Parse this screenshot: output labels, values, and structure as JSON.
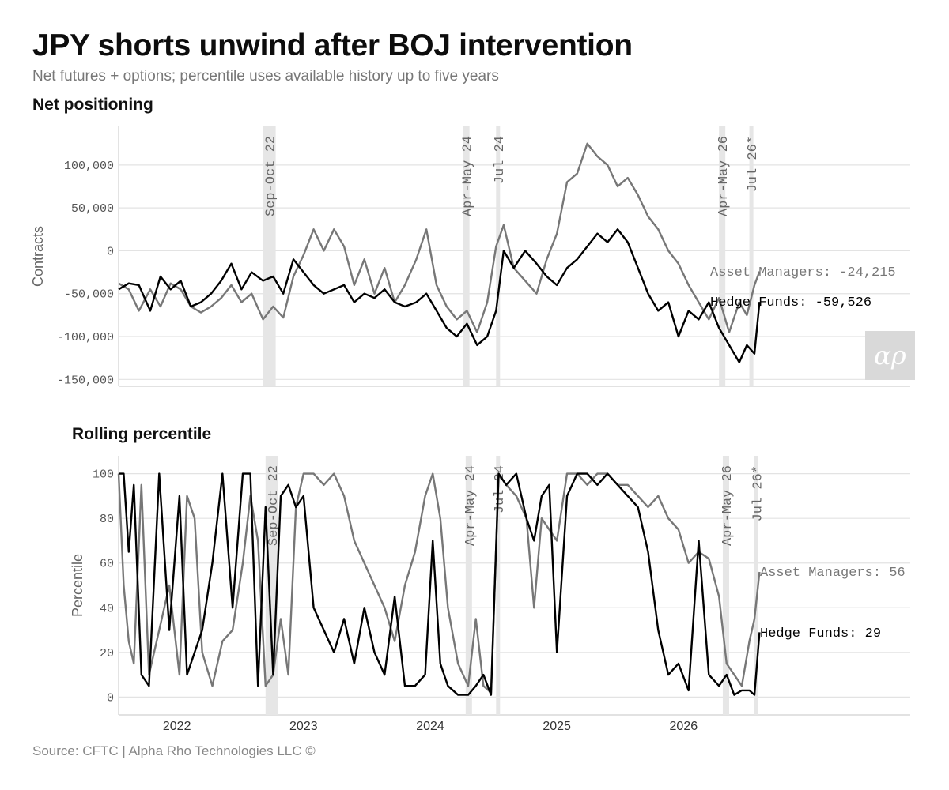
{
  "header": {
    "title": "JPY shorts unwind after BOJ intervention",
    "subtitle": "Net futures + options; percentile uses available history up to five years"
  },
  "footer": {
    "source": "Source: CFTC | Alpha Rho Technologies LLC ©"
  },
  "logo": {
    "icon": "alpha-rho-logo"
  },
  "colors": {
    "asset_managers": "#777777",
    "hedge_funds": "#000000",
    "shading": "#e6e6e6",
    "grid": "#e3e3e3"
  },
  "chart_data": [
    {
      "type": "line",
      "title": "Net positioning",
      "ylabel": "Contracts",
      "ylim": [
        -158000,
        145000
      ],
      "yticks": [
        100000,
        50000,
        0,
        -50000,
        -100000,
        -150000
      ],
      "ytick_labels": [
        "100,000",
        "50,000",
        "0",
        "-50,000",
        "-100,000",
        "-150,000"
      ],
      "xlim": [
        2021.54,
        2027.79
      ],
      "grid": true,
      "shaded_periods": [
        {
          "label": "Sep-Oct 22",
          "start": 2022.68,
          "end": 2022.78
        },
        {
          "label": "Apr-May 24",
          "start": 2024.26,
          "end": 2024.31
        },
        {
          "label": "Jul 24",
          "start": 2024.52,
          "end": 2024.55
        },
        {
          "label": "Apr-May 26",
          "start": 2026.28,
          "end": 2026.33
        },
        {
          "label": "Jul 26*",
          "start": 2026.52,
          "end": 2026.55
        }
      ],
      "series": [
        {
          "name": "Asset Managers",
          "end_label": "Asset Managers: -24,215",
          "x": [
            2021.54,
            2021.62,
            2021.7,
            2021.79,
            2021.87,
            2021.95,
            2022.03,
            2022.11,
            2022.19,
            2022.27,
            2022.35,
            2022.43,
            2022.51,
            2022.59,
            2022.68,
            2022.76,
            2022.84,
            2022.92,
            2023.0,
            2023.08,
            2023.16,
            2023.24,
            2023.32,
            2023.4,
            2023.48,
            2023.56,
            2023.64,
            2023.72,
            2023.8,
            2023.89,
            2023.97,
            2024.05,
            2024.13,
            2024.21,
            2024.29,
            2024.37,
            2024.45,
            2024.52,
            2024.58,
            2024.66,
            2024.75,
            2024.84,
            2024.92,
            2025.0,
            2025.08,
            2025.16,
            2025.24,
            2025.32,
            2025.4,
            2025.48,
            2025.56,
            2025.64,
            2025.72,
            2025.8,
            2025.88,
            2025.96,
            2026.04,
            2026.12,
            2026.2,
            2026.28,
            2026.36,
            2026.44,
            2026.5,
            2026.56,
            2026.6
          ],
          "y": [
            -38000,
            -45000,
            -70000,
            -45000,
            -65000,
            -38000,
            -45000,
            -65000,
            -72000,
            -65000,
            -55000,
            -40000,
            -60000,
            -50000,
            -80000,
            -65000,
            -78000,
            -30000,
            -5000,
            25000,
            0,
            25000,
            5000,
            -40000,
            -10000,
            -50000,
            -20000,
            -60000,
            -40000,
            -10000,
            25000,
            -40000,
            -65000,
            -80000,
            -70000,
            -95000,
            -60000,
            5000,
            30000,
            -20000,
            -35000,
            -50000,
            -10000,
            20000,
            80000,
            90000,
            125000,
            110000,
            100000,
            75000,
            85000,
            65000,
            40000,
            25000,
            0,
            -15000,
            -40000,
            -60000,
            -80000,
            -55000,
            -95000,
            -60000,
            -75000,
            -40000,
            -24215
          ]
        },
        {
          "name": "Hedge Funds",
          "end_label": "Hedge Funds: -59,526",
          "x": [
            2021.54,
            2021.62,
            2021.7,
            2021.79,
            2021.87,
            2021.95,
            2022.03,
            2022.11,
            2022.19,
            2022.27,
            2022.35,
            2022.43,
            2022.51,
            2022.59,
            2022.68,
            2022.76,
            2022.84,
            2022.92,
            2023.0,
            2023.08,
            2023.16,
            2023.24,
            2023.32,
            2023.4,
            2023.48,
            2023.56,
            2023.64,
            2023.72,
            2023.8,
            2023.89,
            2023.97,
            2024.05,
            2024.13,
            2024.21,
            2024.29,
            2024.37,
            2024.45,
            2024.52,
            2024.58,
            2024.66,
            2024.75,
            2024.84,
            2024.92,
            2025.0,
            2025.08,
            2025.16,
            2025.24,
            2025.32,
            2025.4,
            2025.48,
            2025.56,
            2025.64,
            2025.72,
            2025.8,
            2025.88,
            2025.96,
            2026.04,
            2026.12,
            2026.2,
            2026.28,
            2026.36,
            2026.44,
            2026.5,
            2026.56,
            2026.6
          ],
          "y": [
            -45000,
            -38000,
            -40000,
            -70000,
            -30000,
            -45000,
            -35000,
            -65000,
            -60000,
            -50000,
            -35000,
            -15000,
            -45000,
            -25000,
            -35000,
            -30000,
            -50000,
            -10000,
            -25000,
            -40000,
            -50000,
            -45000,
            -40000,
            -60000,
            -50000,
            -55000,
            -45000,
            -60000,
            -65000,
            -60000,
            -50000,
            -70000,
            -90000,
            -100000,
            -85000,
            -110000,
            -100000,
            -70000,
            0,
            -20000,
            0,
            -15000,
            -30000,
            -40000,
            -20000,
            -10000,
            5000,
            20000,
            10000,
            25000,
            10000,
            -20000,
            -50000,
            -70000,
            -60000,
            -100000,
            -70000,
            -80000,
            -60000,
            -90000,
            -110000,
            -130000,
            -110000,
            -120000,
            -59526
          ]
        }
      ]
    },
    {
      "type": "line",
      "title": "Rolling percentile",
      "ylabel": "Percentile",
      "ylim": [
        -8,
        108
      ],
      "yticks": [
        100,
        80,
        60,
        40,
        20,
        0
      ],
      "ytick_labels": [
        "100",
        "80",
        "60",
        "40",
        "20",
        "0"
      ],
      "xlim": [
        2021.54,
        2027.79
      ],
      "xticks": [
        2022,
        2023,
        2024,
        2025,
        2026
      ],
      "xtick_labels": [
        "2022",
        "2023",
        "2024",
        "2025",
        "2026"
      ],
      "grid": true,
      "shaded_periods": [
        {
          "label": "Sep-Oct 22",
          "start": 2022.7,
          "end": 2022.8
        },
        {
          "label": "Apr-May 24",
          "start": 2024.28,
          "end": 2024.33
        },
        {
          "label": "Jul 24",
          "start": 2024.52,
          "end": 2024.55
        },
        {
          "label": "Apr-May 26",
          "start": 2026.31,
          "end": 2026.36
        },
        {
          "label": "Jul 26*",
          "start": 2026.56,
          "end": 2026.59
        }
      ],
      "series": [
        {
          "name": "Asset Managers",
          "end_label": "Asset Managers: 56",
          "x": [
            2021.54,
            2021.58,
            2021.62,
            2021.66,
            2021.72,
            2021.78,
            2021.86,
            2021.94,
            2022.02,
            2022.08,
            2022.14,
            2022.2,
            2022.28,
            2022.36,
            2022.44,
            2022.52,
            2022.58,
            2022.64,
            2022.7,
            2022.76,
            2022.82,
            2022.88,
            2022.94,
            2023.0,
            2023.08,
            2023.16,
            2023.24,
            2023.32,
            2023.4,
            2023.48,
            2023.56,
            2023.64,
            2023.72,
            2023.8,
            2023.88,
            2023.96,
            2024.02,
            2024.08,
            2024.14,
            2024.22,
            2024.3,
            2024.36,
            2024.42,
            2024.48,
            2024.54,
            2024.6,
            2024.68,
            2024.76,
            2024.82,
            2024.88,
            2024.94,
            2025.0,
            2025.08,
            2025.16,
            2025.24,
            2025.32,
            2025.4,
            2025.48,
            2025.56,
            2025.64,
            2025.72,
            2025.8,
            2025.88,
            2025.96,
            2026.04,
            2026.12,
            2026.2,
            2026.28,
            2026.34,
            2026.4,
            2026.46,
            2026.52,
            2026.56,
            2026.6
          ],
          "y": [
            100,
            50,
            25,
            15,
            95,
            10,
            30,
            50,
            10,
            90,
            80,
            20,
            5,
            25,
            30,
            60,
            90,
            70,
            5,
            10,
            35,
            10,
            85,
            100,
            100,
            95,
            100,
            90,
            70,
            60,
            50,
            40,
            25,
            50,
            65,
            90,
            100,
            80,
            40,
            15,
            5,
            35,
            5,
            2,
            100,
            95,
            90,
            80,
            40,
            80,
            75,
            70,
            100,
            100,
            95,
            100,
            100,
            95,
            95,
            90,
            85,
            90,
            80,
            75,
            60,
            65,
            62,
            45,
            15,
            10,
            5,
            25,
            35,
            56
          ]
        },
        {
          "name": "Hedge Funds",
          "end_label": "Hedge Funds: 29",
          "x": [
            2021.54,
            2021.58,
            2021.62,
            2021.66,
            2021.72,
            2021.78,
            2021.86,
            2021.94,
            2022.02,
            2022.08,
            2022.14,
            2022.2,
            2022.28,
            2022.36,
            2022.44,
            2022.52,
            2022.58,
            2022.64,
            2022.7,
            2022.76,
            2022.82,
            2022.88,
            2022.94,
            2023.0,
            2023.08,
            2023.16,
            2023.24,
            2023.32,
            2023.4,
            2023.48,
            2023.56,
            2023.64,
            2023.72,
            2023.8,
            2023.88,
            2023.96,
            2024.02,
            2024.08,
            2024.14,
            2024.22,
            2024.3,
            2024.36,
            2024.42,
            2024.48,
            2024.54,
            2024.6,
            2024.68,
            2024.76,
            2024.82,
            2024.88,
            2024.94,
            2025.0,
            2025.08,
            2025.16,
            2025.24,
            2025.32,
            2025.4,
            2025.48,
            2025.56,
            2025.64,
            2025.72,
            2025.8,
            2025.88,
            2025.96,
            2026.04,
            2026.12,
            2026.2,
            2026.28,
            2026.34,
            2026.4,
            2026.46,
            2026.52,
            2026.56,
            2026.6
          ],
          "y": [
            100,
            100,
            65,
            95,
            10,
            5,
            100,
            30,
            90,
            10,
            20,
            30,
            60,
            100,
            40,
            100,
            100,
            5,
            85,
            10,
            90,
            95,
            85,
            90,
            40,
            30,
            20,
            35,
            15,
            40,
            20,
            10,
            45,
            5,
            5,
            10,
            70,
            15,
            5,
            1,
            1,
            5,
            10,
            1,
            100,
            95,
            100,
            80,
            70,
            90,
            95,
            20,
            90,
            100,
            100,
            95,
            100,
            95,
            90,
            85,
            65,
            30,
            10,
            15,
            3,
            70,
            10,
            5,
            10,
            1,
            3,
            3,
            1,
            29
          ]
        }
      ]
    }
  ]
}
